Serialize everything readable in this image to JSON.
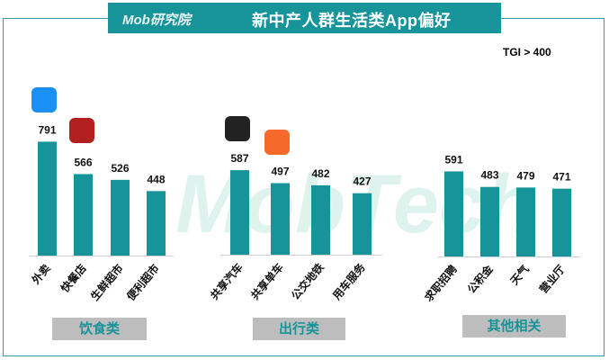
{
  "header": {
    "logo": "Mob研究院",
    "title": "新中产人群生活类App偏好"
  },
  "watermark": "MobTech",
  "note": "TGI > 400",
  "colors": {
    "bar": "#16949a",
    "accent": "#16949a"
  },
  "chart_data": {
    "type": "bar",
    "title": "新中产人群生活类App偏好",
    "ylabel": "TGI",
    "groups": [
      {
        "name": "饮食类",
        "categories": [
          "外卖",
          "快餐店",
          "生鲜超市",
          "便利超市"
        ],
        "values": [
          791,
          566,
          526,
          448
        ]
      },
      {
        "name": "出行类",
        "categories": [
          "共享汽车",
          "共享单车",
          "公交地铁",
          "用车服务"
        ],
        "values": [
          587,
          497,
          482,
          427
        ]
      },
      {
        "name": "其他相关",
        "categories": [
          "求职招聘",
          "公积金",
          "天气",
          "营业厅"
        ],
        "values": [
          591,
          483,
          479,
          471
        ]
      }
    ]
  }
}
